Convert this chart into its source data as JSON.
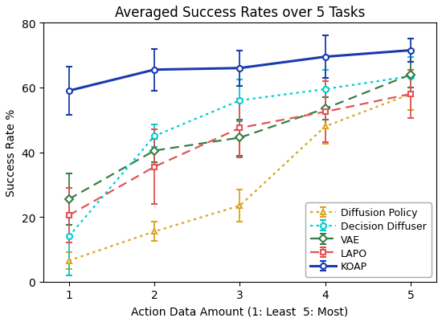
{
  "title": "Averaged Success Rates over 5 Tasks",
  "xlabel": "Action Data Amount (1: Least  5: Most)",
  "ylabel": "Success Rate %",
  "x": [
    1,
    2,
    3,
    4,
    5
  ],
  "series": {
    "Diffusion Policy": {
      "y": [
        6.5,
        15.5,
        23.5,
        48.0,
        58.0
      ],
      "yerr": [
        2.5,
        3.0,
        5.0,
        5.5,
        5.0
      ],
      "color": "#DAA520",
      "linestyle": "dotted",
      "marker": "^",
      "markersize": 5,
      "linewidth": 1.6
    },
    "Decision Diffuser": {
      "y": [
        14.0,
        45.0,
        56.0,
        59.5,
        63.5
      ],
      "yerr": [
        12.0,
        3.5,
        6.5,
        6.0,
        6.0
      ],
      "color": "#00CED1",
      "linestyle": "dotted",
      "marker": "o",
      "markersize": 5,
      "linewidth": 1.6
    },
    "VAE": {
      "y": [
        25.5,
        40.5,
        44.5,
        53.5,
        64.0
      ],
      "yerr": [
        8.0,
        3.5,
        5.5,
        3.5,
        4.0
      ],
      "color": "#3A7D44",
      "linestyle": "dashed",
      "marker": "D",
      "markersize": 5,
      "linewidth": 1.6
    },
    "LAPO": {
      "y": [
        20.5,
        35.5,
        47.5,
        52.5,
        58.0
      ],
      "yerr": [
        8.5,
        11.5,
        9.0,
        9.5,
        7.5
      ],
      "color": "#E05555",
      "linestyle": "dashed",
      "marker": "s",
      "markersize": 5,
      "linewidth": 1.6
    },
    "KOAP": {
      "y": [
        59.0,
        65.5,
        66.0,
        69.5,
        71.5
      ],
      "yerr": [
        7.5,
        6.5,
        5.5,
        6.5,
        3.5
      ],
      "color": "#1a3aad",
      "linestyle": "solid",
      "marker": "o",
      "markersize": 5,
      "linewidth": 2.2
    }
  },
  "ylim": [
    0,
    80
  ],
  "xlim": [
    0.7,
    5.3
  ],
  "xticks": [
    1,
    2,
    3,
    4,
    5
  ],
  "yticks": [
    0,
    20,
    40,
    60,
    80
  ],
  "legend_order": [
    "Diffusion Policy",
    "Decision Diffuser",
    "VAE",
    "LAPO",
    "KOAP"
  ],
  "legend_loc": "lower right",
  "title_fontsize": 12,
  "label_fontsize": 10,
  "tick_fontsize": 10,
  "legend_fontsize": 9,
  "capsize": 3,
  "elinewidth": 1.3,
  "background_color": "#ffffff"
}
